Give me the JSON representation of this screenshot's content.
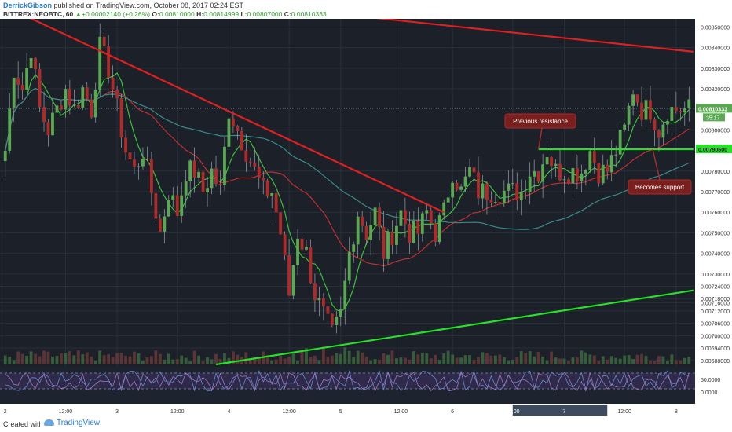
{
  "header": {
    "author": "DerrickGibson",
    "published": "published on TradingView.com, October 08, 2017 02:24 EST",
    "symbol": "BITTREX:NEOBTC, 60",
    "change_arrow": "▲",
    "change": "+0.00002140 (+0.26%)",
    "o_label": "O:",
    "o_value": "0.00810000",
    "h_label": "H:",
    "h_value": "0.00814999",
    "l_label": "L:",
    "l_value": "0.00807000",
    "c_label": "C:",
    "c_value": "0.00810333"
  },
  "footer": {
    "created_with": "Created with",
    "brand": "TradingView"
  },
  "chart_data": {
    "type": "candlestick",
    "symbol": "BITTREX:NEOBTC",
    "interval": "60",
    "ylim": [
      0.00686,
      0.00854
    ],
    "y_ticks": [
      "0.00850000",
      "0.00840000",
      "0.00830000",
      "0.00820000",
      "0.00800000",
      "0.00780000",
      "0.00770000",
      "0.00760000",
      "0.00750000",
      "0.00740000",
      "0.00730000",
      "0.00724000",
      "0.00718000",
      "0.00716000",
      "0.00712000",
      "0.00706000",
      "0.00700000",
      "0.00694000",
      "0.00688000"
    ],
    "y_tick_values": [
      0.0085,
      0.0084,
      0.0083,
      0.0082,
      0.008,
      0.0078,
      0.0077,
      0.0076,
      0.0075,
      0.0074,
      0.0073,
      0.00724,
      0.00718,
      0.00716,
      0.00712,
      0.00706,
      0.007,
      0.00694,
      0.00688
    ],
    "x_ticks": [
      "2",
      "12:00",
      "3",
      "12:00",
      "4",
      "12:00",
      "5",
      "12:00",
      "6",
      "12:00",
      "7",
      "12:00",
      "8"
    ],
    "x_tick_index": [
      0,
      14,
      26,
      40,
      52,
      66,
      78,
      92,
      104,
      118,
      130,
      144,
      156
    ],
    "candle_count": 160,
    "price_label": "0.00810333",
    "countdown": "35:17",
    "support_label": "0.00790600",
    "support_value": 0.007906,
    "oscillator_ticks": [
      "50.0000",
      "0.0000"
    ],
    "anchors": [
      [
        0,
        0.0079
      ],
      [
        2,
        0.0083
      ],
      [
        4,
        0.0082
      ],
      [
        6,
        0.0084
      ],
      [
        8,
        0.0081
      ],
      [
        10,
        0.008
      ],
      [
        12,
        0.0081
      ],
      [
        14,
        0.0082
      ],
      [
        16,
        0.0081
      ],
      [
        18,
        0.0082
      ],
      [
        20,
        0.0081
      ],
      [
        22,
        0.0084
      ],
      [
        24,
        0.0083
      ],
      [
        26,
        0.0081
      ],
      [
        28,
        0.0079
      ],
      [
        30,
        0.0078
      ],
      [
        32,
        0.0079
      ],
      [
        34,
        0.0077
      ],
      [
        36,
        0.0075
      ],
      [
        38,
        0.0077
      ],
      [
        40,
        0.0076
      ],
      [
        42,
        0.0078
      ],
      [
        44,
        0.0078
      ],
      [
        46,
        0.0077
      ],
      [
        48,
        0.0078
      ],
      [
        50,
        0.0077
      ],
      [
        52,
        0.0081
      ],
      [
        54,
        0.008
      ],
      [
        56,
        0.0079
      ],
      [
        58,
        0.0078
      ],
      [
        60,
        0.0077
      ],
      [
        62,
        0.0077
      ],
      [
        64,
        0.0075
      ],
      [
        66,
        0.0072
      ],
      [
        68,
        0.0075
      ],
      [
        70,
        0.0074
      ],
      [
        72,
        0.0072
      ],
      [
        74,
        0.0071
      ],
      [
        76,
        0.007
      ],
      [
        78,
        0.0071
      ],
      [
        80,
        0.0074
      ],
      [
        82,
        0.0076
      ],
      [
        84,
        0.0075
      ],
      [
        86,
        0.0076
      ],
      [
        88,
        0.0074
      ],
      [
        90,
        0.0075
      ],
      [
        92,
        0.0076
      ],
      [
        94,
        0.0075
      ],
      [
        96,
        0.0075
      ],
      [
        98,
        0.0076
      ],
      [
        100,
        0.0075
      ],
      [
        102,
        0.0076
      ],
      [
        104,
        0.0078
      ],
      [
        106,
        0.0077
      ],
      [
        108,
        0.0078
      ],
      [
        110,
        0.0077
      ],
      [
        112,
        0.0077
      ],
      [
        114,
        0.0077
      ],
      [
        116,
        0.0077
      ],
      [
        118,
        0.0077
      ],
      [
        120,
        0.0077
      ],
      [
        122,
        0.0078
      ],
      [
        124,
        0.0078
      ],
      [
        126,
        0.0079
      ],
      [
        128,
        0.0078
      ],
      [
        130,
        0.0078
      ],
      [
        132,
        0.0078
      ],
      [
        134,
        0.0078
      ],
      [
        136,
        0.0079
      ],
      [
        138,
        0.0078
      ],
      [
        140,
        0.0078
      ],
      [
        142,
        0.0079
      ],
      [
        144,
        0.008
      ],
      [
        146,
        0.0082
      ],
      [
        148,
        0.0081
      ],
      [
        150,
        0.0081
      ],
      [
        152,
        0.008
      ],
      [
        154,
        0.0081
      ],
      [
        156,
        0.0081
      ]
    ],
    "trendlines": [
      {
        "name": "descending resistance",
        "color": "#e02020",
        "from": [
          -2,
          0.00862
        ],
        "to": [
          102,
          0.0076
        ]
      },
      {
        "name": "long-term resistance",
        "color": "#e02020",
        "from": [
          70,
          0.00858
        ],
        "to": [
          160,
          0.00838
        ]
      },
      {
        "name": "rising support",
        "color": "#27e027",
        "from": [
          49,
          0.00686
        ],
        "to": [
          160,
          0.00722
        ]
      },
      {
        "name": "horizontal level",
        "color": "#27e027",
        "from": [
          124,
          0.007906
        ],
        "to": [
          160,
          0.007906
        ]
      }
    ],
    "annotations": [
      {
        "text": "Previous resistance",
        "anchor_index": 124,
        "anchor_price": 0.007906
      },
      {
        "text": "Becomes support",
        "anchor_index": 148,
        "anchor_price": 0.007906
      }
    ]
  }
}
